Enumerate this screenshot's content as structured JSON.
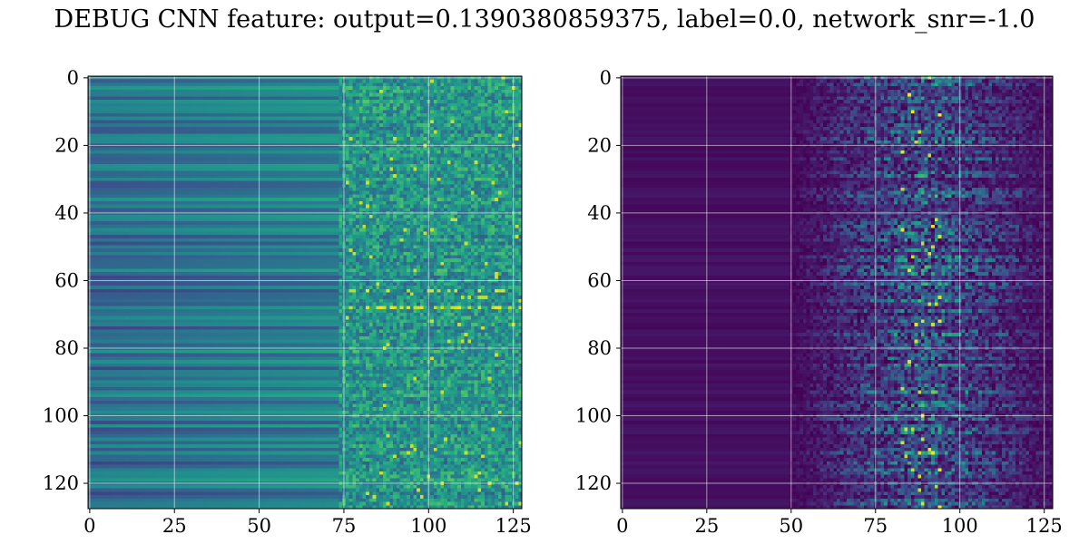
{
  "figure": {
    "title": "DEBUG CNN feature: output=0.1390380859375, label=0.0, network_snr=-1.0"
  },
  "chart_data": [
    {
      "type": "heatmap",
      "title": "",
      "xlabel": "",
      "ylabel": "",
      "colormap": "viridis",
      "shape": [
        128,
        128
      ],
      "xlim": [
        -0.5,
        127.5
      ],
      "ylim": [
        127.5,
        -0.5
      ],
      "y_inverted": true,
      "grid": true,
      "xticks": [
        0,
        25,
        50,
        75,
        100,
        125
      ],
      "yticks": [
        0,
        20,
        40,
        60,
        80,
        100,
        120
      ],
      "xtick_labels": [
        "0",
        "25",
        "50",
        "75",
        "100",
        "125"
      ],
      "ytick_labels": [
        "0",
        "20",
        "40",
        "60",
        "80",
        "100",
        "120"
      ],
      "value_profile": {
        "columns_0_to_74": "smooth horizontal bands, low-mid intensity (dark blue to teal)",
        "columns_75_to_127": "noisy, higher intensity with bright spots near rows 62-68",
        "bright_rows": [
          63,
          65,
          68
        ]
      }
    },
    {
      "type": "heatmap",
      "title": "",
      "xlabel": "",
      "ylabel": "",
      "colormap": "viridis",
      "shape": [
        128,
        128
      ],
      "xlim": [
        -0.5,
        127.5
      ],
      "ylim": [
        127.5,
        -0.5
      ],
      "y_inverted": true,
      "grid": true,
      "xticks": [
        0,
        25,
        50,
        75,
        100,
        125
      ],
      "yticks": [
        0,
        20,
        40,
        60,
        80,
        100,
        120
      ],
      "xtick_labels": [
        "0",
        "25",
        "50",
        "75",
        "100",
        "125"
      ],
      "ytick_labels": [
        "0",
        "20",
        "40",
        "60",
        "80",
        "100",
        "120"
      ],
      "value_profile": {
        "columns_0_to_49": "near zero (dark purple)",
        "columns_50_to_127": "sparse activations, peaks around columns 85-95",
        "bright_rows": [
          12,
          31,
          39,
          43,
          103,
          122
        ]
      }
    }
  ]
}
